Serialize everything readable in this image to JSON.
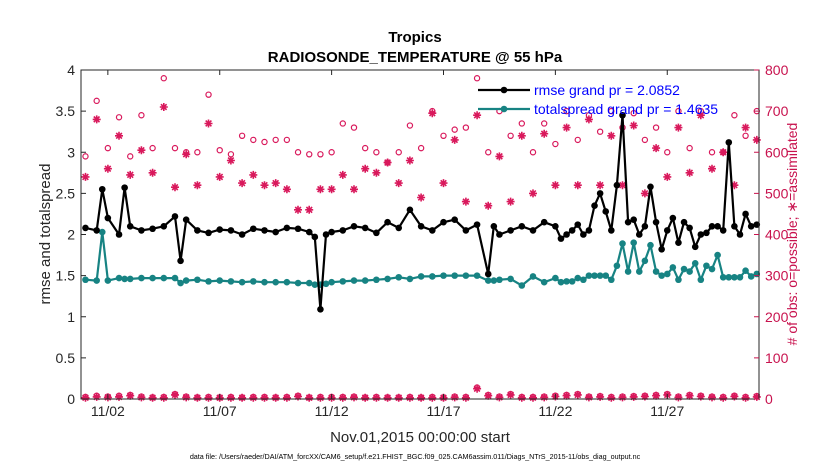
{
  "chart_data": {
    "type": "line",
    "title": "Tropics",
    "subtitle": "RADIOSONDE_TEMPERATURE @ 55 hPa",
    "xlabel": "Nov.01,2015 00:00:00 start",
    "ylabel_left": "rmse and totalspread",
    "ylabel_right": "# of obs: o=possible; ∗=assimilated",
    "footnote": "data file: /Users/raeder/DAI/ATM_forcXX/CAM6_setup/f.e21.FHIST_BGC.f09_025.CAM6assim.011/Diags_NTrS_2015-11/obs_diag_output.nc",
    "xlim": [
      0.8,
      31.1
    ],
    "ylim_left": [
      0,
      4
    ],
    "ylim_right": [
      0,
      800
    ],
    "x_ticks": [
      2,
      7,
      12,
      17,
      22,
      27
    ],
    "x_tick_labels": [
      "11/02",
      "11/07",
      "11/12",
      "11/17",
      "11/22",
      "11/27"
    ],
    "y_left_ticks": [
      "0",
      "0.5",
      "1",
      "1.5",
      "2",
      "2.5",
      "3",
      "3.5",
      "4"
    ],
    "y_right_ticks": [
      "0",
      "100",
      "200",
      "300",
      "400",
      "500",
      "600",
      "700",
      "800"
    ],
    "colors": {
      "rmse": "#000000",
      "totalspread": "#178383",
      "obs": "#d9195c",
      "legend_text": "#0000ff",
      "right_axis": "#c8124e"
    },
    "legend": [
      {
        "name": "rmse grand pr = 2.0852",
        "series": "rmse"
      },
      {
        "name": "totalspread grand pr = 1.4635",
        "series": "totalspread"
      }
    ],
    "rmse": {
      "x": [
        1,
        1.5,
        1.75,
        2,
        2.5,
        2.75,
        3,
        3.5,
        4,
        4.5,
        5,
        5.25,
        5.5,
        6,
        6.5,
        7,
        7.5,
        8,
        8.5,
        9,
        9.5,
        10,
        10.5,
        11,
        11.25,
        11.5,
        11.75,
        12,
        12.5,
        13,
        13.5,
        14,
        14.5,
        15,
        15.5,
        16,
        16.5,
        17,
        17.5,
        18,
        18.5,
        19,
        19.25,
        19.5,
        20,
        20.5,
        21,
        21.5,
        22,
        22.25,
        22.5,
        22.75,
        23,
        23.25,
        23.5,
        23.75,
        24,
        24.25,
        24.5,
        24.75,
        25,
        25.25,
        25.5,
        25.75,
        26,
        26.25,
        26.5,
        26.75,
        27,
        27.25,
        27.5,
        27.75,
        28,
        28.25,
        28.5,
        28.75,
        29,
        29.25,
        29.5,
        29.75,
        30,
        30.25,
        30.5,
        30.75,
        31
      ],
      "y": [
        2.08,
        2.05,
        2.55,
        2.2,
        2.0,
        2.57,
        2.1,
        2.05,
        2.07,
        2.1,
        2.22,
        1.68,
        2.18,
        2.05,
        2.02,
        2.06,
        2.05,
        2.0,
        2.07,
        2.05,
        2.03,
        2.08,
        2.07,
        2.03,
        1.97,
        1.09,
        2.0,
        2.03,
        2.05,
        2.1,
        2.08,
        2.02,
        2.15,
        2.08,
        2.3,
        2.1,
        2.05,
        2.15,
        2.18,
        2.05,
        2.12,
        1.52,
        2.1,
        2.0,
        2.05,
        2.1,
        2.05,
        2.15,
        2.1,
        1.95,
        2.0,
        2.05,
        2.12,
        2.0,
        2.05,
        2.35,
        2.5,
        2.28,
        2.05,
        2.6,
        3.45,
        2.15,
        2.18,
        2.0,
        2.1,
        2.58,
        2.15,
        1.82,
        2.05,
        2.2,
        1.9,
        2.15,
        2.08,
        1.85,
        2.0,
        2.02,
        2.1,
        2.1,
        2.05,
        3.12,
        2.1,
        2.0,
        2.25,
        2.1,
        2.12
      ]
    },
    "totalspread": {
      "x": [
        1,
        1.5,
        1.75,
        2,
        2.5,
        2.75,
        3,
        3.5,
        4,
        4.5,
        5,
        5.25,
        5.5,
        6,
        6.5,
        7,
        7.5,
        8,
        8.5,
        9,
        9.5,
        10,
        10.5,
        11,
        11.25,
        11.5,
        11.75,
        12,
        12.5,
        13,
        13.5,
        14,
        14.5,
        15,
        15.5,
        16,
        16.5,
        17,
        17.5,
        18,
        18.5,
        19,
        19.25,
        19.5,
        20,
        20.5,
        21,
        21.5,
        22,
        22.25,
        22.5,
        22.75,
        23,
        23.25,
        23.5,
        23.75,
        24,
        24.25,
        24.5,
        24.75,
        25,
        25.25,
        25.5,
        25.75,
        26,
        26.25,
        26.5,
        26.75,
        27,
        27.25,
        27.5,
        27.75,
        28,
        28.25,
        28.5,
        28.75,
        29,
        29.25,
        29.5,
        29.75,
        30,
        30.25,
        30.5,
        30.75,
        31
      ],
      "y": [
        1.45,
        1.44,
        2.03,
        1.44,
        1.47,
        1.46,
        1.46,
        1.47,
        1.47,
        1.47,
        1.47,
        1.41,
        1.44,
        1.45,
        1.43,
        1.44,
        1.43,
        1.42,
        1.43,
        1.42,
        1.42,
        1.42,
        1.41,
        1.41,
        1.39,
        1.39,
        1.4,
        1.42,
        1.43,
        1.44,
        1.44,
        1.45,
        1.46,
        1.48,
        1.46,
        1.49,
        1.49,
        1.5,
        1.5,
        1.5,
        1.5,
        1.44,
        1.44,
        1.45,
        1.46,
        1.38,
        1.49,
        1.42,
        1.47,
        1.42,
        1.43,
        1.43,
        1.47,
        1.45,
        1.5,
        1.5,
        1.5,
        1.5,
        1.45,
        1.62,
        1.89,
        1.55,
        1.9,
        1.55,
        1.68,
        1.87,
        1.55,
        1.5,
        1.52,
        1.6,
        1.45,
        1.58,
        1.55,
        1.65,
        1.45,
        1.62,
        1.58,
        1.75,
        1.48,
        1.48,
        1.48,
        1.48,
        1.56,
        1.49,
        1.52
      ]
    },
    "possible": {
      "x": [
        1,
        1.5,
        2,
        2.5,
        3,
        3.5,
        4,
        4.5,
        5,
        5.5,
        6,
        6.5,
        7,
        7.5,
        8,
        8.5,
        9,
        9.5,
        10,
        10.5,
        11,
        11.5,
        12,
        12.5,
        13,
        13.5,
        14,
        14.5,
        15,
        15.5,
        16,
        16.5,
        17,
        17.5,
        18,
        18.5,
        19,
        19.5,
        20,
        20.5,
        21,
        21.5,
        22,
        22.5,
        23,
        23.5,
        24,
        24.5,
        25,
        25.5,
        26,
        26.5,
        27,
        27.5,
        28,
        28.5,
        29,
        29.5,
        30,
        30.5,
        31
      ],
      "y": [
        590,
        725,
        610,
        685,
        590,
        690,
        610,
        780,
        610,
        600,
        600,
        740,
        605,
        595,
        640,
        630,
        625,
        630,
        630,
        600,
        595,
        595,
        600,
        670,
        660,
        610,
        600,
        575,
        600,
        665,
        610,
        700,
        640,
        655,
        660,
        780,
        600,
        700,
        640,
        670,
        600,
        670,
        620,
        700,
        630,
        690,
        650,
        700,
        660,
        695,
        630,
        660,
        600,
        700,
        610,
        700,
        600,
        600,
        690,
        640,
        700
      ]
    },
    "assimilated": {
      "x": [
        1,
        1.5,
        2,
        2.5,
        3,
        3.5,
        4,
        4.5,
        5,
        5.5,
        6,
        6.5,
        7,
        7.5,
        8,
        8.5,
        9,
        9.5,
        10,
        10.5,
        11,
        11.5,
        12,
        12.5,
        13,
        13.5,
        14,
        14.5,
        15,
        15.5,
        16,
        16.5,
        17,
        17.5,
        18,
        18.5,
        19,
        19.5,
        20,
        20.5,
        21,
        21.5,
        22,
        22.5,
        23,
        23.5,
        24,
        24.5,
        25,
        25.5,
        26,
        26.5,
        27,
        27.5,
        28,
        28.5,
        29,
        29.5,
        30,
        30.5,
        31
      ],
      "y": [
        540,
        680,
        560,
        640,
        545,
        605,
        550,
        710,
        515,
        595,
        520,
        670,
        540,
        580,
        525,
        545,
        520,
        525,
        510,
        460,
        460,
        510,
        510,
        545,
        510,
        560,
        550,
        575,
        525,
        580,
        490,
        695,
        525,
        630,
        480,
        690,
        470,
        590,
        480,
        640,
        500,
        645,
        520,
        660,
        520,
        680,
        520,
        640,
        520,
        665,
        500,
        610,
        540,
        660,
        550,
        690,
        560,
        600,
        520,
        660,
        630
      ]
    },
    "possible_bottom": {
      "x": [
        1,
        1.5,
        2,
        2.5,
        3,
        3.5,
        4,
        4.5,
        5,
        5.5,
        6,
        6.5,
        7,
        7.5,
        8,
        8.5,
        9,
        9.5,
        10,
        10.5,
        11,
        11.5,
        12,
        12.5,
        13,
        13.5,
        14,
        14.5,
        15,
        15.5,
        16,
        16.5,
        17,
        17.5,
        18,
        18.5,
        19,
        19.5,
        20,
        20.5,
        21,
        21.5,
        22,
        22.5,
        23,
        23.5,
        24,
        24.5,
        25,
        25.5,
        26,
        26.5,
        27,
        27.5,
        28,
        28.5,
        29,
        29.5,
        30,
        30.5,
        31
      ],
      "y": [
        5,
        8,
        6,
        8,
        10,
        6,
        4,
        5,
        12,
        6,
        4,
        5,
        4,
        5,
        4,
        5,
        5,
        4,
        5,
        8,
        4,
        5,
        5,
        5,
        6,
        4,
        5,
        4,
        4,
        5,
        4,
        5,
        4,
        6,
        5,
        28,
        10,
        6,
        12,
        5,
        5,
        6,
        8,
        10,
        12,
        6,
        7,
        5,
        6,
        7,
        8,
        10,
        12,
        6,
        10,
        8,
        6,
        5,
        8,
        5,
        7
      ]
    },
    "assimilated_bottom": {
      "x": [
        1,
        1.5,
        2,
        2.5,
        3,
        3.5,
        4,
        4.5,
        5,
        5.5,
        6,
        6.5,
        7,
        7.5,
        8,
        8.5,
        9,
        9.5,
        10,
        10.5,
        11,
        11.5,
        12,
        12.5,
        13,
        13.5,
        14,
        14.5,
        15,
        15.5,
        16,
        16.5,
        17,
        17.5,
        18,
        18.5,
        19,
        19.5,
        20,
        20.5,
        21,
        21.5,
        22,
        22.5,
        23,
        23.5,
        24,
        24.5,
        25,
        25.5,
        26,
        26.5,
        27,
        27.5,
        28,
        28.5,
        29,
        29.5,
        30,
        30.5,
        31
      ],
      "y": [
        3,
        5,
        4,
        5,
        8,
        4,
        3,
        3,
        10,
        4,
        3,
        3,
        3,
        3,
        3,
        3,
        3,
        3,
        3,
        6,
        3,
        3,
        3,
        3,
        4,
        3,
        3,
        3,
        3,
        3,
        3,
        3,
        3,
        4,
        3,
        25,
        8,
        4,
        10,
        3,
        3,
        4,
        6,
        8,
        10,
        4,
        5,
        3,
        4,
        5,
        6,
        8,
        10,
        4,
        8,
        6,
        4,
        3,
        6,
        3,
        5
      ]
    }
  }
}
